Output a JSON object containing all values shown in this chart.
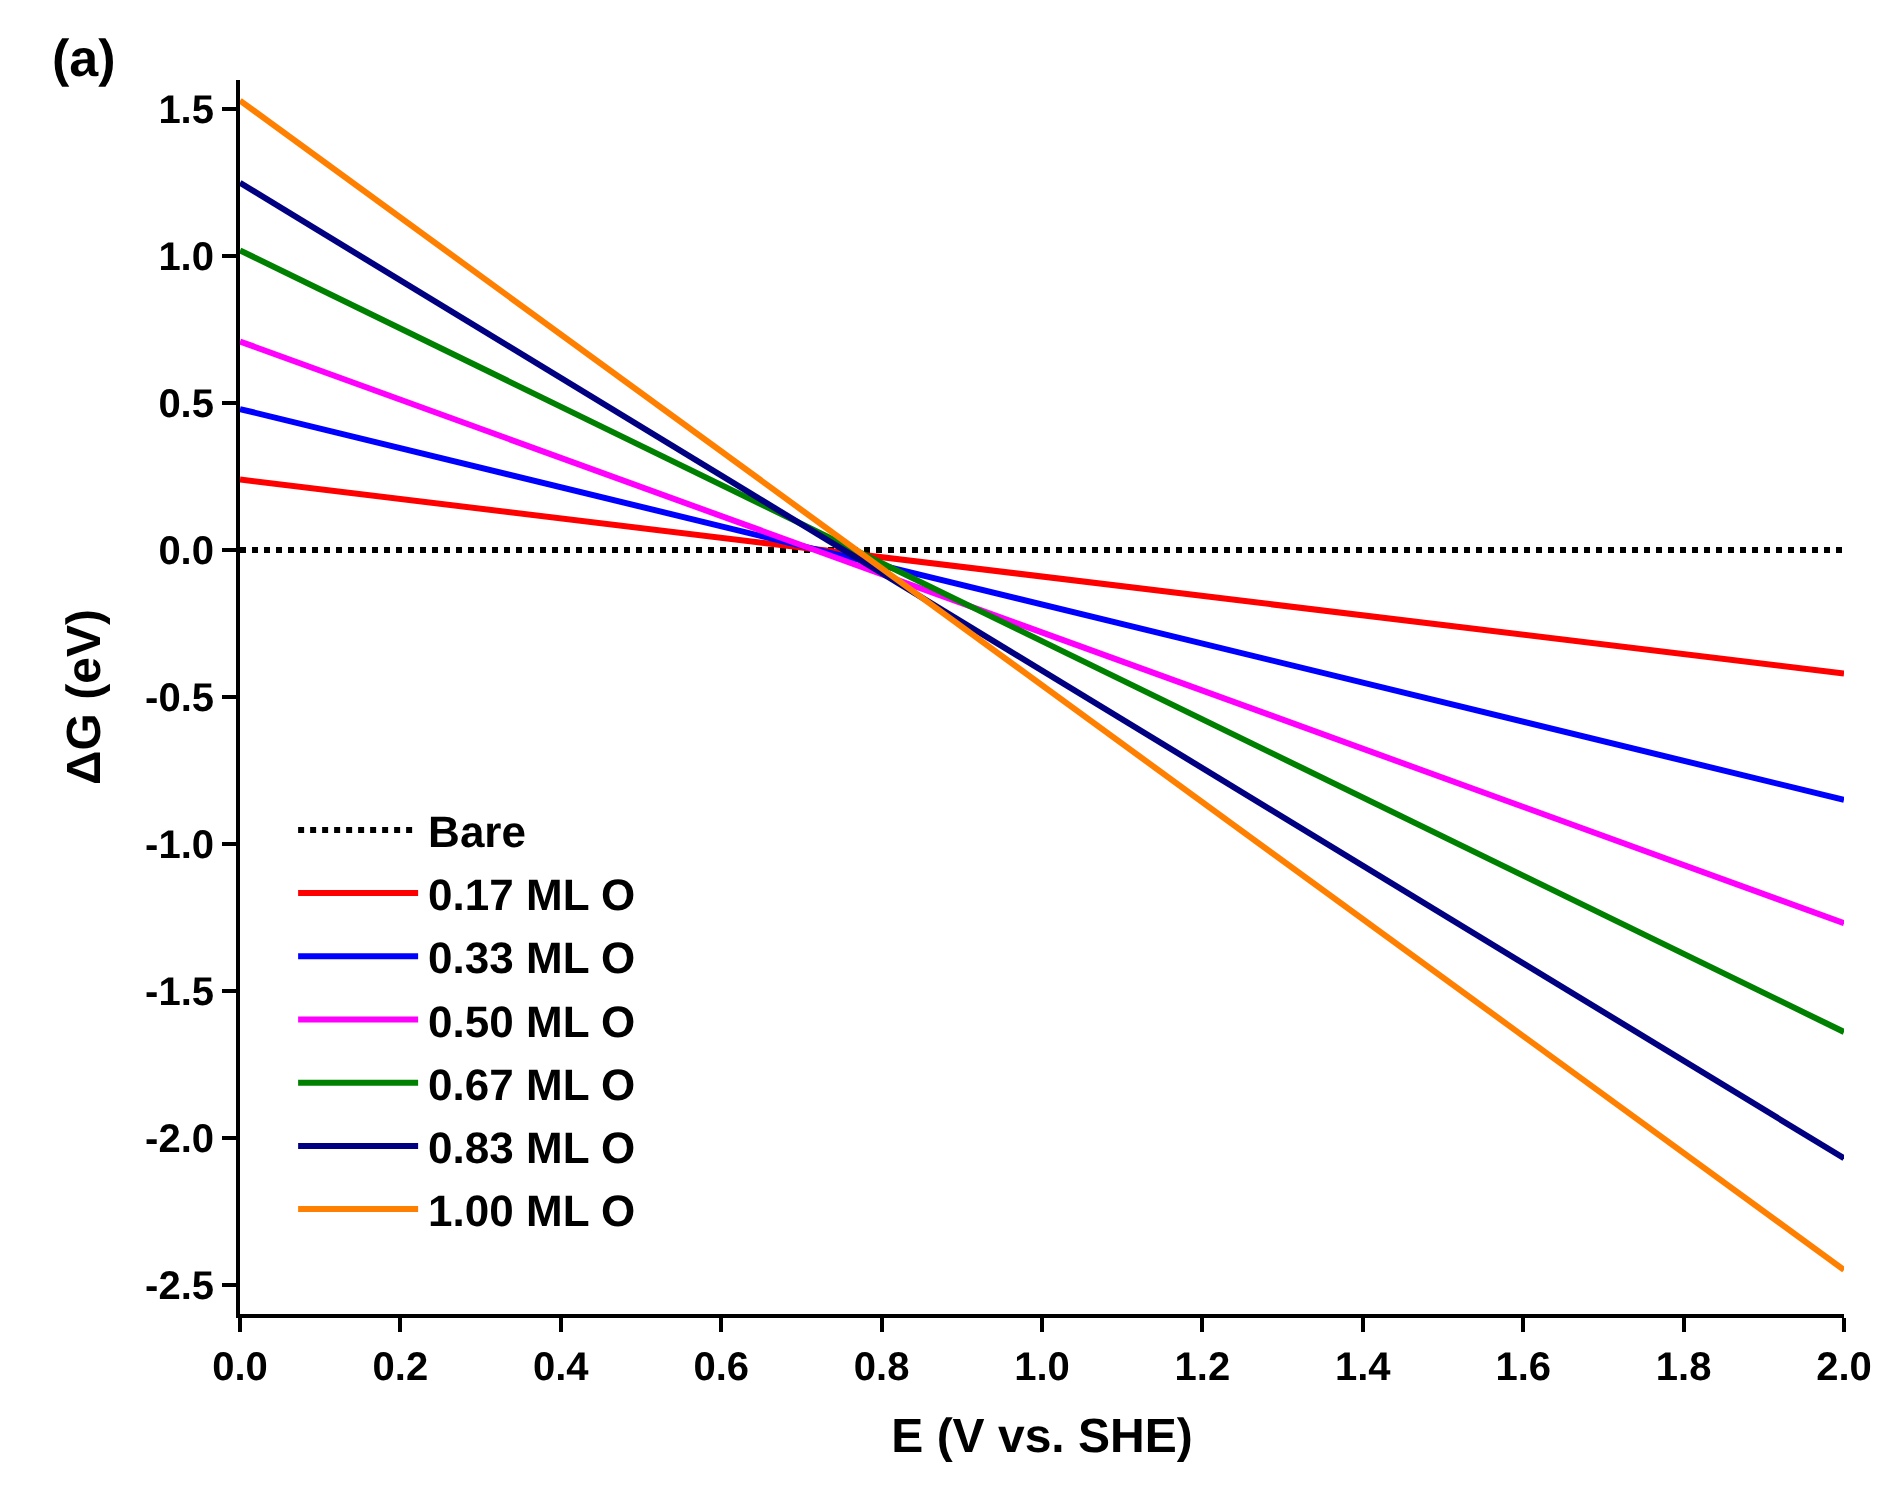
{
  "chart_data": {
    "type": "line",
    "xlabel": "E (V vs. SHE)",
    "ylabel": "ΔG (eV)",
    "annotations": [
      "(a)"
    ],
    "x": [
      0,
      2
    ],
    "series": [
      {
        "name": "Bare",
        "color": "#000000",
        "values": [
          0,
          0
        ],
        "line_style": "dotted"
      },
      {
        "name": "0.17 ML O",
        "color": "#ff0000",
        "values": [
          0.24,
          -0.42
        ]
      },
      {
        "name": "0.33 ML O",
        "color": "#0000ff",
        "values": [
          0.48,
          -0.85
        ]
      },
      {
        "name": "0.50 ML O",
        "color": "#ff00ff",
        "values": [
          0.71,
          -1.27
        ]
      },
      {
        "name": "0.67 ML O",
        "color": "#008000",
        "values": [
          1.02,
          -1.64
        ]
      },
      {
        "name": "0.83 ML O",
        "color": "#000080",
        "values": [
          1.25,
          -2.07
        ]
      },
      {
        "name": "1.00 ML O",
        "color": "#ff8000",
        "values": [
          1.53,
          -2.45
        ]
      }
    ],
    "xlim": [
      0,
      2
    ],
    "xticks": [
      {
        "value": 0,
        "label": "0.0"
      },
      0.2,
      0.4,
      0.6,
      0.8,
      {
        "value": 1,
        "label": "1.0"
      },
      1.2,
      1.4,
      1.6,
      1.8,
      {
        "value": 2,
        "label": "2.0"
      }
    ],
    "ylim": [
      -2.6,
      1.6
    ],
    "yticks": [
      {
        "value": -2.5,
        "label": "-2.5"
      },
      {
        "value": -2,
        "label": "-2.0"
      },
      {
        "value": -1.5,
        "label": "-1.5"
      },
      {
        "value": -1,
        "label": "-1.0"
      },
      {
        "value": -0.5,
        "label": "-0.5"
      },
      {
        "value": 0,
        "label": "0.0"
      },
      0.5,
      {
        "value": 1,
        "label": "1.0"
      },
      1.5
    ],
    "legend": "bottom left",
    "line_style": "solid",
    "marker": "none"
  }
}
